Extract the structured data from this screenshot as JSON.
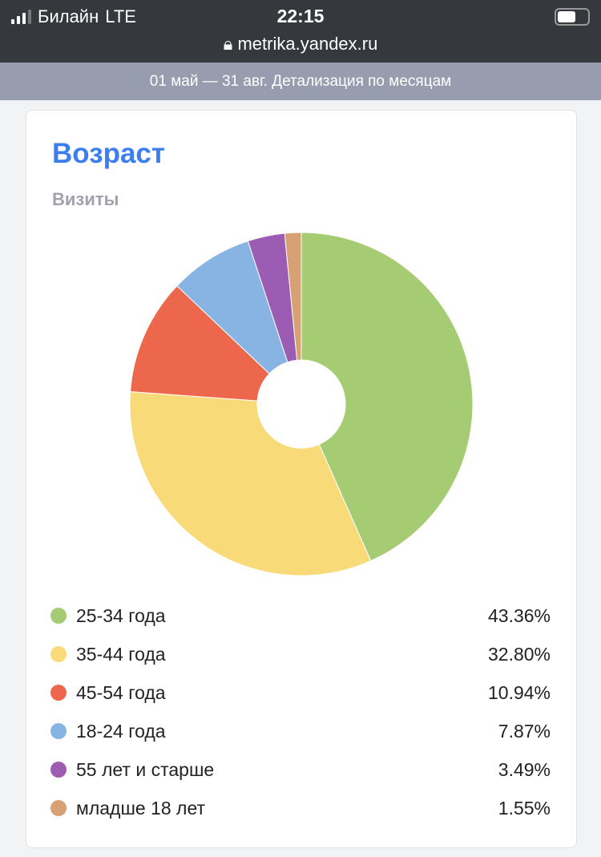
{
  "status": {
    "carrier": "Билайн",
    "network": "LTE",
    "time": "22:15",
    "url": "metrika.yandex.ru"
  },
  "subheader": "01 май — 31 авг. Детализация по месяцам",
  "card": {
    "title": "Возраст",
    "metric": "Визиты"
  },
  "chart_data": {
    "type": "pie",
    "donut": true,
    "title": "Возраст",
    "subtitle": "Визиты",
    "categories": [
      "25-34 года",
      "35-44 года",
      "45-54 года",
      "18-24 года",
      "55 лет и старше",
      "младше 18 лет"
    ],
    "values": [
      43.36,
      32.8,
      10.94,
      7.87,
      3.49,
      1.55
    ],
    "labels": [
      "43.36%",
      "32.80%",
      "10.94%",
      "7.87%",
      "3.49%",
      "1.55%"
    ],
    "colors": [
      "#a5cc72",
      "#f8db78",
      "#ec674b",
      "#88b4e4",
      "#9c5cb4",
      "#d7a173"
    ]
  }
}
